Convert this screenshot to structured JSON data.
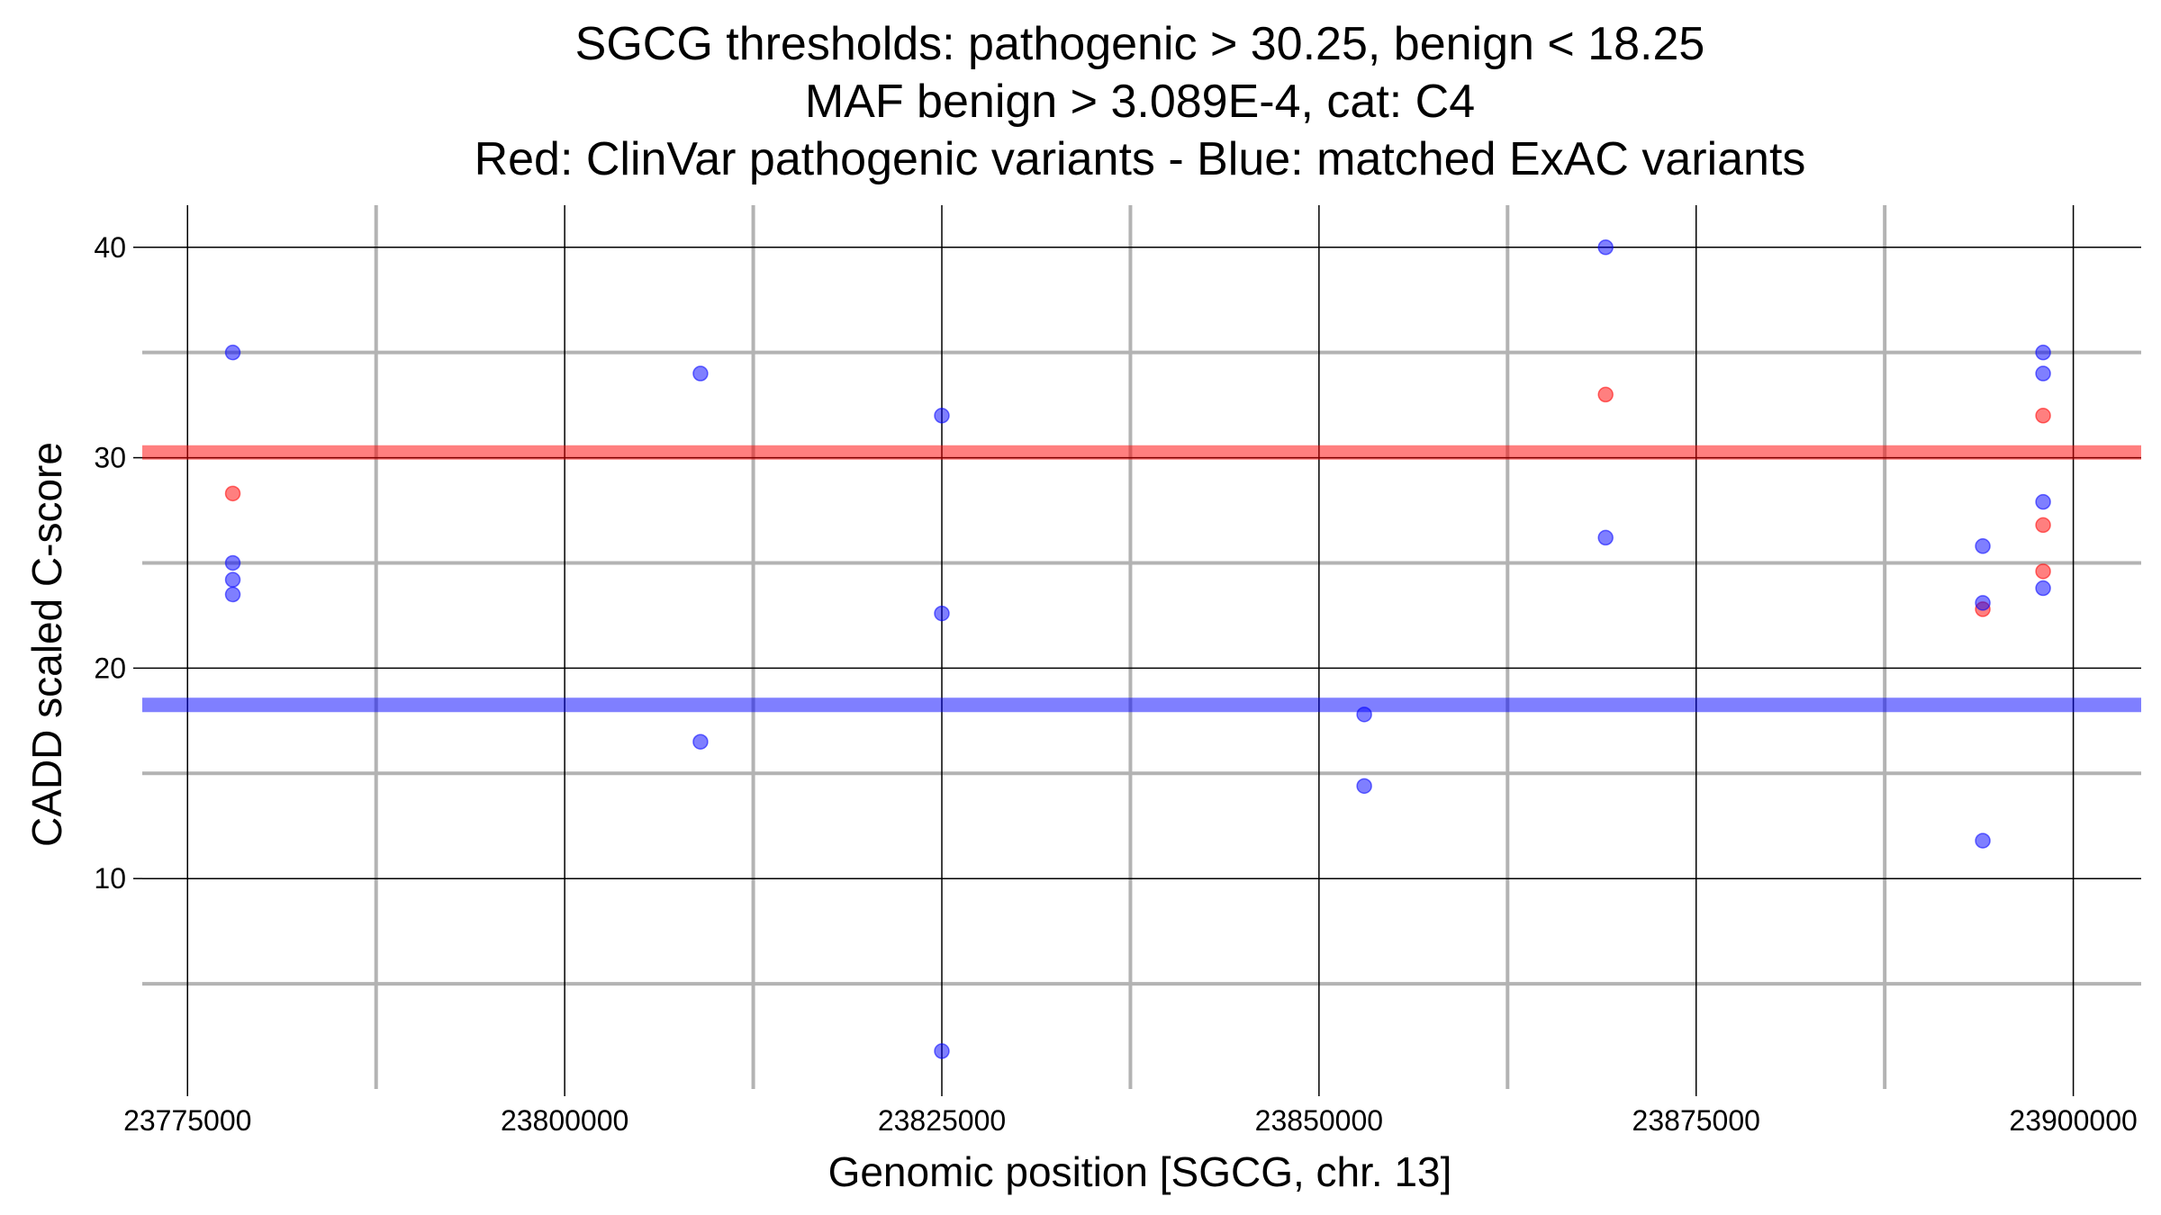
{
  "chart_data": {
    "type": "scatter",
    "title_lines": [
      "SGCG thresholds: pathogenic > 30.25, benign < 18.25",
      "MAF benign > 3.089E-4, cat: C4",
      "Red: ClinVar pathogenic variants - Blue: matched ExAC variants"
    ],
    "xlabel": "Genomic position [SGCG, chr. 13]",
    "ylabel": "CADD scaled C-score",
    "xlim": [
      23772000,
      23904500
    ],
    "ylim": [
      0,
      42
    ],
    "x_major_ticks": [
      23775000,
      23800000,
      23825000,
      23850000,
      23875000,
      23900000
    ],
    "x_tick_labels": [
      "23775000",
      "23800000",
      "23825000",
      "23850000",
      "23875000",
      "23900000"
    ],
    "x_minor_ticks": [
      23787500,
      23812500,
      23837500,
      23862500,
      23887500
    ],
    "y_major_ticks": [
      10,
      20,
      30,
      40
    ],
    "y_tick_labels": [
      "10",
      "20",
      "30",
      "40"
    ],
    "y_minor_ticks": [
      5,
      15,
      25,
      35
    ],
    "thresholds": [
      {
        "name": "pathogenic",
        "value": 30.25,
        "color": "#ff0000"
      },
      {
        "name": "benign",
        "value": 18.25,
        "color": "#0000ff"
      }
    ],
    "series": [
      {
        "name": "ClinVar pathogenic variants",
        "color": "#ff0000",
        "points": [
          {
            "x": 23778000,
            "y": 28.3
          },
          {
            "x": 23869000,
            "y": 33.0
          },
          {
            "x": 23898000,
            "y": 32.0
          },
          {
            "x": 23898000,
            "y": 26.8
          },
          {
            "x": 23898000,
            "y": 24.6
          },
          {
            "x": 23894000,
            "y": 22.8
          }
        ]
      },
      {
        "name": "matched ExAC variants",
        "color": "#0000ff",
        "points": [
          {
            "x": 23778000,
            "y": 35.0
          },
          {
            "x": 23778000,
            "y": 25.0
          },
          {
            "x": 23778000,
            "y": 24.2
          },
          {
            "x": 23778000,
            "y": 23.5
          },
          {
            "x": 23809000,
            "y": 34.0
          },
          {
            "x": 23809000,
            "y": 16.5
          },
          {
            "x": 23825000,
            "y": 32.0
          },
          {
            "x": 23825000,
            "y": 22.6
          },
          {
            "x": 23825000,
            "y": 1.8
          },
          {
            "x": 23853000,
            "y": 17.8
          },
          {
            "x": 23853000,
            "y": 14.4
          },
          {
            "x": 23869000,
            "y": 40.0
          },
          {
            "x": 23869000,
            "y": 26.2
          },
          {
            "x": 23894000,
            "y": 25.8
          },
          {
            "x": 23894000,
            "y": 23.1
          },
          {
            "x": 23894000,
            "y": 11.8
          },
          {
            "x": 23898000,
            "y": 35.0
          },
          {
            "x": 23898000,
            "y": 34.0
          },
          {
            "x": 23898000,
            "y": 27.9
          },
          {
            "x": 23898000,
            "y": 23.8
          }
        ]
      }
    ]
  }
}
